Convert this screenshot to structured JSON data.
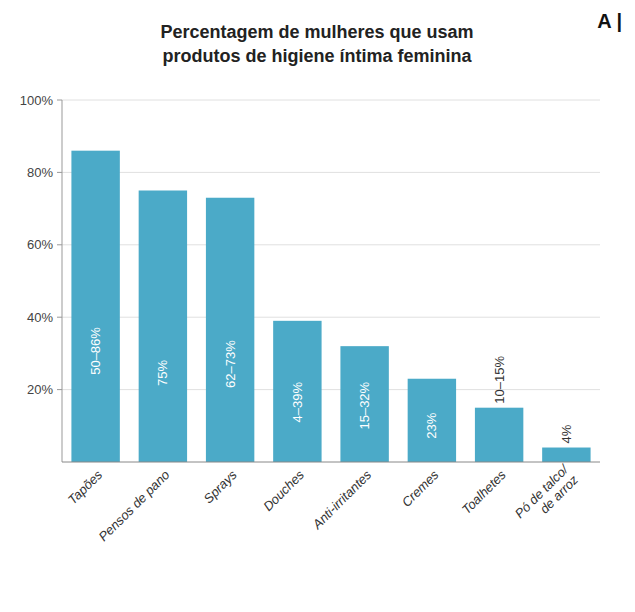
{
  "chart_data": {
    "type": "bar",
    "title": "Percentagem de mulheres que usam\nprodutos de higiene íntima feminina",
    "annotations": [
      "A |"
    ],
    "categories": [
      "Tapões",
      "Pensos de pano",
      "Sprays",
      "Douches",
      "Anti-irritantes",
      "Cremes",
      "Toalhetes",
      "Pó de talco/\nde arroz"
    ],
    "values": [
      86,
      75,
      73,
      39,
      32,
      23,
      15,
      4
    ],
    "value_labels": [
      "50–86%",
      "75%",
      "62–73%",
      "4–39%",
      "15–32%",
      "23%",
      "10–15%",
      "4%"
    ],
    "data_labels": true,
    "color": "#4BAAC8",
    "ylim": [
      0,
      100
    ],
    "yticks": [
      {
        "value": 20,
        "label": "20%"
      },
      {
        "value": 40,
        "label": "40%"
      },
      {
        "value": 60,
        "label": "60%"
      },
      {
        "value": 80,
        "label": "80%"
      },
      {
        "value": 100,
        "label": "100%"
      }
    ],
    "grid": true
  }
}
